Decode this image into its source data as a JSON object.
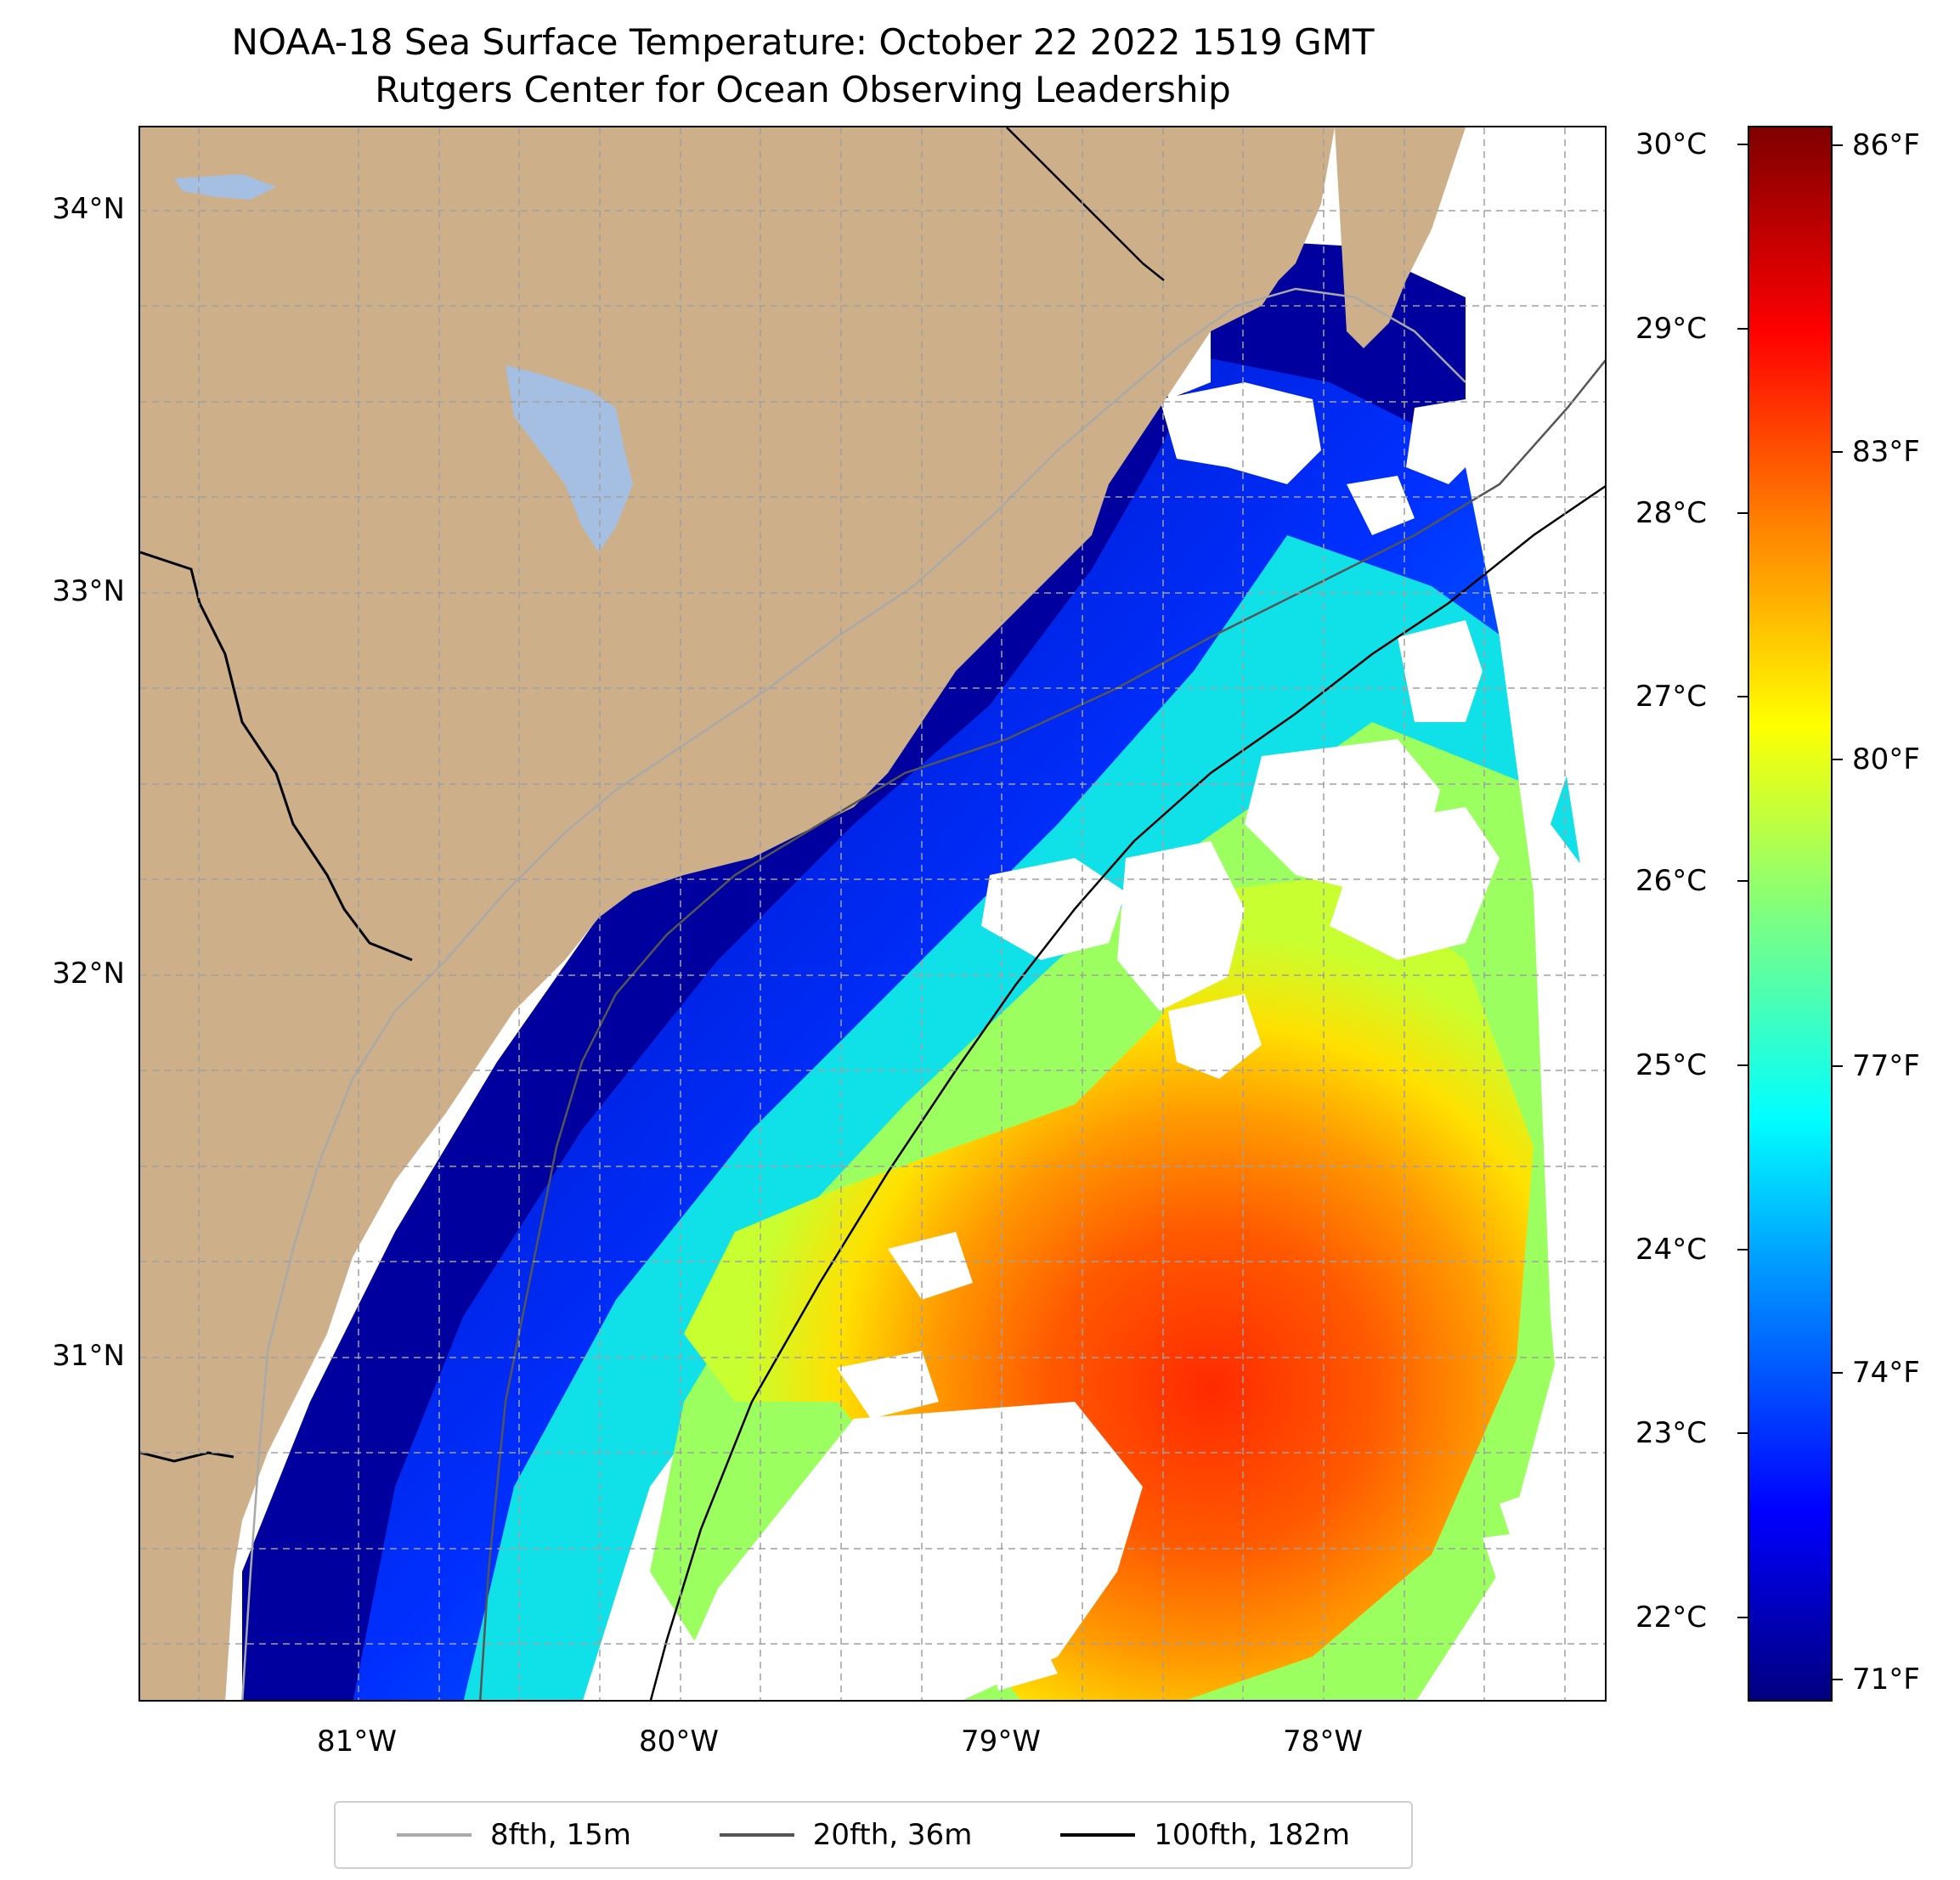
{
  "title": {
    "line1": "NOAA-18 Sea Surface Temperature: October 22 2022 1519 GMT",
    "line2": "Rutgers Center for Ocean Observing Leadership"
  },
  "map": {
    "lat_labels": [
      "34°N",
      "33°N",
      "32°N",
      "31°N"
    ],
    "lon_labels": [
      "81°W",
      "80°W",
      "79°W",
      "78°W"
    ],
    "colors": {
      "land": "#cdb08a",
      "water_body": "#a5bfe3",
      "no_data": "#ffffff",
      "grid": "#a0a0a0"
    }
  },
  "colorbar": {
    "celsius_labels": [
      "30°C",
      "29°C",
      "28°C",
      "27°C",
      "26°C",
      "25°C",
      "24°C",
      "23°C",
      "22°C"
    ],
    "fahrenheit_labels": [
      "86°F",
      "83°F",
      "80°F",
      "77°F",
      "74°F",
      "71°F"
    ],
    "celsius_range": [
      21.6,
      30.1
    ],
    "colormap": "jet"
  },
  "legend": {
    "items": [
      {
        "label": "8fth, 15m",
        "color": "#a9a9a9"
      },
      {
        "label": "20fth, 36m",
        "color": "#555555"
      },
      {
        "label": "100fth, 182m",
        "color": "#000000"
      }
    ]
  }
}
